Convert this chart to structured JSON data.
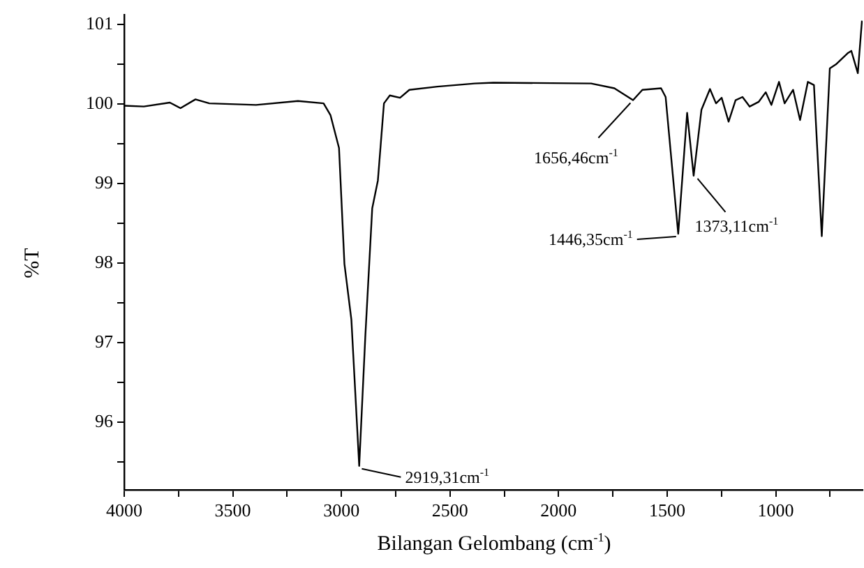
{
  "chart_data": {
    "type": "line",
    "xlabel": "Bilangan Gelombang (cm$^{-1}$)",
    "ylabel": "%T",
    "xlim": [
      4000,
      600
    ],
    "ylim": [
      95.15,
      101.12
    ],
    "xticks": [
      4000,
      {
        "value": 3750,
        "label": null
      },
      3500,
      {
        "value": 3250,
        "label": null
      },
      3000,
      {
        "value": 2750,
        "label": null
      },
      2500,
      {
        "value": 2250,
        "label": null
      },
      2000,
      {
        "value": 1750,
        "label": null
      },
      1500,
      {
        "value": 1250,
        "label": null
      },
      1000,
      {
        "value": 750,
        "label": null
      }
    ],
    "yticks": [
      {
        "value": 95.5,
        "label": null
      },
      96,
      {
        "value": 96.5,
        "label": null
      },
      97,
      {
        "value": 97.5,
        "label": null
      },
      98,
      {
        "value": 98.5,
        "label": null
      },
      99,
      {
        "value": 99.5,
        "label": null
      },
      100,
      {
        "value": 100.5,
        "label": null
      },
      101
    ],
    "grid": false,
    "legend": false,
    "marker": "none",
    "line_style": "solid",
    "series": [
      {
        "color": "#000000",
        "x": [
          4000,
          3910,
          3790,
          3741,
          3672,
          3608,
          3393,
          3200,
          3082,
          3050,
          3011,
          2986,
          2954,
          2918,
          2890,
          2858,
          2832,
          2804,
          2777,
          2730,
          2687,
          2558,
          2386,
          2300,
          1850,
          1743,
          1657,
          1614,
          1528,
          1507,
          1449,
          1408,
          1378,
          1342,
          1303,
          1275,
          1249,
          1217,
          1185,
          1153,
          1120,
          1078,
          1046,
          1020,
          985,
          959,
          920,
          888,
          852,
          824,
          788,
          751,
          723,
          669,
          652,
          622,
          603
        ],
        "values": [
          99.98,
          99.97,
          100.02,
          99.95,
          100.06,
          100.01,
          99.99,
          100.04,
          100.01,
          99.86,
          99.45,
          97.99,
          97.29,
          95.45,
          97.07,
          98.69,
          99.04,
          100.01,
          100.11,
          100.08,
          100.18,
          100.22,
          100.26,
          100.27,
          100.26,
          100.2,
          100.05,
          100.18,
          100.2,
          100.09,
          98.37,
          99.89,
          99.1,
          99.93,
          100.19,
          100.01,
          100.08,
          99.78,
          100.05,
          100.09,
          99.97,
          100.03,
          100.15,
          99.99,
          100.28,
          100.01,
          100.18,
          99.8,
          100.28,
          100.24,
          98.34,
          100.45,
          100.5,
          100.64,
          100.67,
          100.39,
          101.05
        ]
      }
    ],
    "annotations": [
      {
        "text": "2919,31cm$^{-1}$",
        "x": 2919,
        "y": 95.45
      },
      {
        "text": "1656,46cm$^{-1}$",
        "x": 1656,
        "y": 100.05
      },
      {
        "text": "1446,35cm$^{-1}$",
        "x": 1446,
        "y": 98.37
      },
      {
        "text": "1373,11cm$^{-1}$",
        "x": 1373,
        "y": 99.1
      }
    ]
  }
}
